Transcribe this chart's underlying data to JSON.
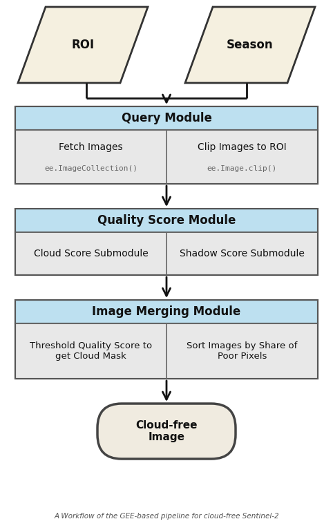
{
  "bg_color": "#ffffff",
  "parallelogram_fill": "#f5f0e0",
  "parallelogram_edge": "#333333",
  "module_header_fill": "#bde0f0",
  "module_header_edge": "#555555",
  "submodule_fill": "#e8e8e8",
  "submodule_edge": "#666666",
  "oval_fill": "#f0ebe0",
  "oval_edge": "#444444",
  "arrow_color": "#111111",
  "text_color": "#111111",
  "mono_color": "#666666",
  "roi_text": "ROI",
  "season_text": "Season",
  "qm_title": "Query Module",
  "qm_left_title": "Fetch Images",
  "qm_left_sub": "ee.ImageCollection()",
  "qm_right_title": "Clip Images to ROI",
  "qm_right_sub": "ee.Image.clip()",
  "qs_title": "Quality Score Module",
  "qs_left": "Cloud Score Submodule",
  "qs_right": "Shadow Score Submodule",
  "im_title": "Image Merging Module",
  "im_left": "Threshold Quality Score to\nget Cloud Mask",
  "im_right": "Sort Images by Share of\nPoor Pixels",
  "output_text": "Cloud-free\nImage",
  "caption": "A Workflow of the GEE-based pipeline for cloud-free Sentinel-2"
}
